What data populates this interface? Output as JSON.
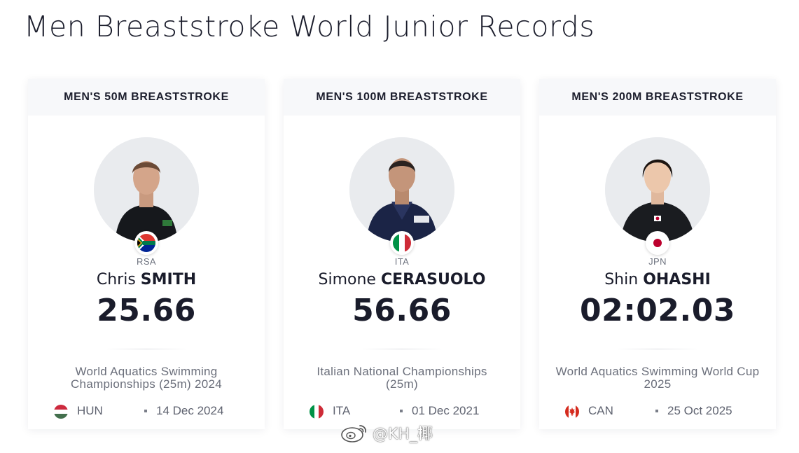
{
  "page": {
    "title": "Men Breaststroke World Junior Records"
  },
  "records": [
    {
      "event": "MEN'S 50M BREASTSTROKE",
      "country_code": "RSA",
      "first_name": "Chris",
      "last_name": "SMITH",
      "time": "25.66",
      "competition": "World Aquatics Swimming Championships (25m) 2024",
      "venue_country": "HUN",
      "date": "14 Dec 2024"
    },
    {
      "event": "MEN'S 100M BREASTSTROKE",
      "country_code": "ITA",
      "first_name": "Simone",
      "last_name": "CERASUOLO",
      "time": "56.66",
      "competition": "Italian National Championships (25m)",
      "venue_country": "ITA",
      "date": "01 Dec 2021"
    },
    {
      "event": "MEN'S 200M BREASTSTROKE",
      "country_code": "JPN",
      "first_name": "Shin",
      "last_name": "OHASHI",
      "time": "02:02.03",
      "competition": "World Aquatics Swimming World Cup 2025",
      "venue_country": "CAN",
      "date": "25 Oct 2025"
    }
  ],
  "watermark": {
    "text": "@KH_椰"
  },
  "icons": {
    "athlete_photo": "athlete-photo-icon",
    "flag_rsa": "flag-south-africa-icon",
    "flag_ita": "flag-italy-icon",
    "flag_jpn": "flag-japan-icon",
    "flag_hun": "flag-hungary-icon",
    "flag_can": "flag-canada-icon",
    "weibo": "weibo-logo-icon"
  }
}
